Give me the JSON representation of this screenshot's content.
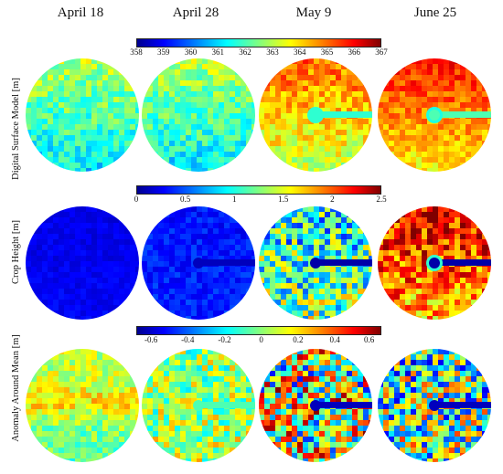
{
  "columns": [
    "April 18",
    "April 28",
    "May 9",
    "June 25"
  ],
  "rows": [
    {
      "label": "Digital Surface Model [m]",
      "ticks": [
        "358",
        "359",
        "360",
        "361",
        "362",
        "363",
        "364",
        "365",
        "366",
        "367"
      ]
    },
    {
      "label": "Crop Height [m]",
      "ticks": [
        "0",
        "0.5",
        "1",
        "1.5",
        "2",
        "2.5"
      ]
    },
    {
      "label": "Anomaly Around Mean [m]",
      "ticks": [
        "-0.6",
        "-0.4",
        "-0.2",
        "0",
        "0.2",
        "0.4",
        "0.6"
      ]
    }
  ],
  "colormap": "jet"
}
